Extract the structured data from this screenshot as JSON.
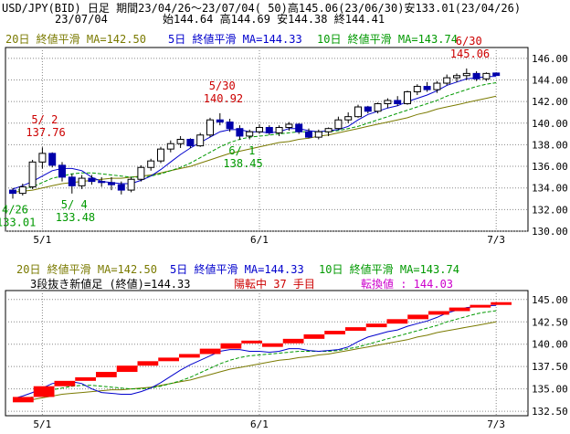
{
  "header": {
    "line1": "USD/JPY(BID) 日足 期間23/04/26～23/07/04( 50)高145.06(23/06/30)安133.01(23/04/26)",
    "date": "23/07/04",
    "ohlc": "始144.64 高144.69 安144.38 終144.41"
  },
  "upper_legend": {
    "ma20": "20日 終値平滑 MA=142.50",
    "ma5": "5日 終値平滑 MA=144.33",
    "ma10": "10日 終値平滑 MA=143.74"
  },
  "lower_legend": {
    "ma20": "20日 終値平滑 MA=142.50",
    "ma5": "5日 終値平滑 MA=144.33",
    "ma10": "10日 終値平滑 MA=143.74",
    "status_black": "3段抜き新値足 (終値)=144.33",
    "status_red": "陽転中 37 手目",
    "status_magenta": "転換値 : 144.03"
  },
  "colors": {
    "ma20": "#7a7a00",
    "ma5": "#0000cc",
    "ma10": "#009900",
    "up_candle": "#ffffff",
    "down_candle": "#0000aa",
    "brick": "#ff0000",
    "annot_high": "#cc0000",
    "annot_low": "#009900"
  },
  "chart_data": [
    {
      "type": "candlestick",
      "title": "USD/JPY(BID) 日足",
      "x_ticks": [
        "5/1",
        "6/1",
        "7/3"
      ],
      "y_ticks": [
        "130.00",
        "132.00",
        "134.00",
        "136.00",
        "138.00",
        "140.00",
        "142.00",
        "144.00",
        "146.00"
      ],
      "ylim": [
        130,
        147
      ],
      "annotations": [
        {
          "label": "4/26",
          "value": "133.01",
          "kind": "low"
        },
        {
          "label": "5/ 2",
          "value": "137.76",
          "kind": "high"
        },
        {
          "label": "5/ 4",
          "value": "133.48",
          "kind": "low"
        },
        {
          "label": "5/30",
          "value": "140.92",
          "kind": "high"
        },
        {
          "label": "6/ 1",
          "value": "138.45",
          "kind": "low"
        },
        {
          "label": "6/30",
          "value": "145.06",
          "kind": "high"
        }
      ],
      "candles": [
        [
          133.8,
          134.0,
          133.01,
          133.5
        ],
        [
          133.5,
          134.4,
          133.3,
          134.1
        ],
        [
          134.1,
          136.6,
          133.9,
          136.4
        ],
        [
          136.4,
          137.76,
          135.8,
          137.2
        ],
        [
          137.2,
          137.3,
          135.9,
          136.1
        ],
        [
          136.1,
          136.4,
          134.6,
          135.0
        ],
        [
          135.0,
          135.3,
          133.48,
          134.2
        ],
        [
          134.2,
          135.2,
          133.9,
          134.9
        ],
        [
          134.9,
          135.2,
          134.3,
          134.6
        ],
        [
          134.6,
          135.0,
          134.1,
          134.5
        ],
        [
          134.5,
          135.0,
          133.8,
          134.3
        ],
        [
          134.3,
          134.6,
          133.4,
          133.8
        ],
        [
          133.8,
          135.0,
          133.6,
          134.8
        ],
        [
          134.8,
          136.1,
          134.6,
          135.9
        ],
        [
          135.9,
          136.7,
          135.6,
          136.5
        ],
        [
          136.5,
          137.8,
          136.3,
          137.6
        ],
        [
          137.6,
          138.4,
          137.3,
          138.1
        ],
        [
          138.1,
          138.8,
          137.7,
          138.5
        ],
        [
          138.5,
          138.6,
          137.7,
          137.9
        ],
        [
          137.9,
          139.1,
          137.8,
          138.9
        ],
        [
          138.9,
          140.5,
          138.7,
          140.3
        ],
        [
          140.3,
          140.92,
          139.8,
          140.1
        ],
        [
          140.1,
          140.4,
          139.2,
          139.5
        ],
        [
          139.5,
          139.8,
          138.45,
          138.8
        ],
        [
          138.8,
          139.4,
          138.5,
          139.2
        ],
        [
          139.2,
          139.9,
          139.0,
          139.6
        ],
        [
          139.6,
          139.8,
          138.9,
          139.1
        ],
        [
          139.1,
          139.8,
          138.8,
          139.6
        ],
        [
          139.6,
          140.1,
          139.3,
          139.9
        ],
        [
          139.9,
          140.0,
          139.0,
          139.2
        ],
        [
          139.2,
          139.5,
          138.6,
          138.7
        ],
        [
          138.7,
          139.4,
          138.5,
          139.2
        ],
        [
          139.2,
          139.6,
          138.8,
          139.5
        ],
        [
          139.5,
          140.6,
          139.4,
          140.3
        ],
        [
          140.3,
          141.0,
          140.0,
          140.6
        ],
        [
          140.6,
          141.7,
          140.5,
          141.5
        ],
        [
          141.5,
          141.6,
          140.9,
          141.1
        ],
        [
          141.1,
          141.9,
          140.9,
          141.8
        ],
        [
          141.8,
          142.3,
          141.4,
          142.1
        ],
        [
          142.1,
          142.5,
          141.6,
          141.8
        ],
        [
          141.8,
          143.0,
          141.7,
          142.9
        ],
        [
          142.9,
          143.6,
          142.6,
          143.4
        ],
        [
          143.4,
          143.8,
          142.9,
          143.1
        ],
        [
          143.1,
          143.9,
          142.8,
          143.7
        ],
        [
          143.7,
          144.5,
          143.5,
          144.2
        ],
        [
          144.2,
          144.6,
          143.8,
          144.4
        ],
        [
          144.4,
          145.06,
          144.0,
          144.6
        ],
        [
          144.6,
          144.8,
          143.9,
          144.1
        ],
        [
          144.1,
          144.7,
          143.9,
          144.6
        ],
        [
          144.64,
          144.69,
          144.38,
          144.41
        ]
      ],
      "ma5": [
        133.9,
        134.2,
        134.6,
        135.1,
        135.6,
        135.8,
        135.8,
        135.6,
        135.0,
        134.6,
        134.5,
        134.4,
        134.4,
        134.7,
        135.1,
        135.7,
        136.4,
        137.1,
        137.7,
        138.2,
        138.7,
        139.2,
        139.4,
        139.4,
        139.2,
        139.2,
        139.1,
        139.2,
        139.5,
        139.5,
        139.3,
        139.2,
        139.3,
        139.4,
        139.7,
        140.3,
        140.8,
        141.1,
        141.4,
        141.6,
        142.0,
        142.3,
        142.6,
        143.0,
        143.5,
        143.8,
        144.1,
        144.2,
        144.3,
        144.33
      ],
      "ma10": [
        133.7,
        133.9,
        134.1,
        134.5,
        134.9,
        135.1,
        135.3,
        135.4,
        135.4,
        135.3,
        135.2,
        135.1,
        135.0,
        135.0,
        135.1,
        135.3,
        135.6,
        135.9,
        136.3,
        136.8,
        137.3,
        137.8,
        138.2,
        138.5,
        138.7,
        138.8,
        138.9,
        139.0,
        139.1,
        139.2,
        139.2,
        139.2,
        139.2,
        139.3,
        139.5,
        139.7,
        140.0,
        140.3,
        140.6,
        140.9,
        141.2,
        141.5,
        141.8,
        142.1,
        142.5,
        142.8,
        143.1,
        143.4,
        143.6,
        143.74
      ],
      "ma20": [
        133.6,
        133.7,
        133.8,
        134.0,
        134.2,
        134.4,
        134.5,
        134.6,
        134.7,
        134.8,
        134.9,
        134.9,
        135.0,
        135.1,
        135.2,
        135.4,
        135.6,
        135.8,
        136.0,
        136.3,
        136.6,
        136.9,
        137.2,
        137.4,
        137.6,
        137.8,
        138.0,
        138.2,
        138.3,
        138.5,
        138.6,
        138.8,
        138.9,
        139.1,
        139.3,
        139.5,
        139.7,
        139.9,
        140.1,
        140.3,
        140.5,
        140.8,
        141.0,
        141.3,
        141.5,
        141.7,
        141.9,
        142.1,
        142.3,
        142.5
      ]
    },
    {
      "type": "line",
      "title": "3段抜き新値足",
      "x_ticks": [
        "5/1",
        "6/1",
        "7/3"
      ],
      "y_ticks": [
        "132.50",
        "135.00",
        "137.50",
        "140.00",
        "142.50",
        "145.00"
      ],
      "ylim": [
        132,
        146
      ],
      "bricks": [
        [
          133.5,
          134.1
        ],
        [
          134.1,
          135.3
        ],
        [
          135.3,
          135.9
        ],
        [
          135.9,
          136.3
        ],
        [
          136.3,
          136.9
        ],
        [
          136.9,
          137.6
        ],
        [
          137.6,
          138.1
        ],
        [
          138.1,
          138.5
        ],
        [
          138.5,
          138.9
        ],
        [
          138.9,
          139.5
        ],
        [
          139.5,
          140.1
        ],
        [
          140.1,
          140.4
        ],
        [
          139.7,
          140.1
        ],
        [
          140.1,
          140.6
        ],
        [
          140.6,
          141.1
        ],
        [
          141.1,
          141.5
        ],
        [
          141.5,
          141.9
        ],
        [
          141.9,
          142.3
        ],
        [
          142.3,
          142.8
        ],
        [
          142.8,
          143.3
        ],
        [
          143.3,
          143.7
        ],
        [
          143.7,
          144.1
        ],
        [
          144.1,
          144.4
        ],
        [
          144.4,
          144.7
        ]
      ]
    }
  ]
}
